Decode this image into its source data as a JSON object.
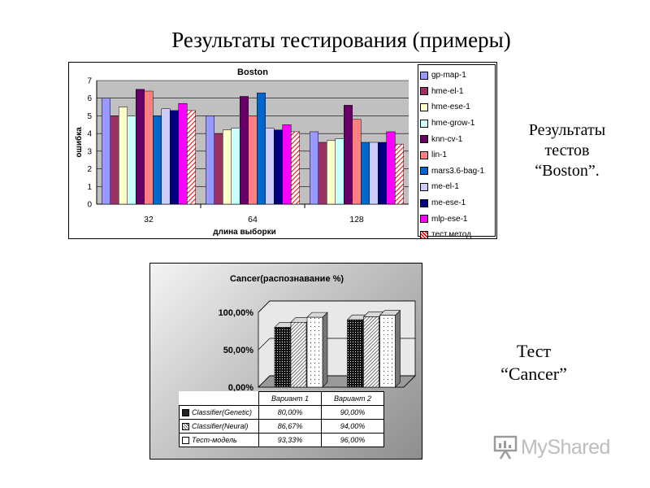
{
  "slide": {
    "title": "Результаты тестирования (примеры)",
    "boston_caption": [
      "Результаты",
      "тестов",
      "“Boston”."
    ],
    "cancer_caption": [
      "Тест",
      "“Cancer”"
    ],
    "watermark": "MyShared"
  },
  "chart_data": [
    {
      "type": "bar",
      "title": "Boston",
      "xlabel": "длина выборки",
      "ylabel": "ошибка",
      "categories": [
        "32",
        "64",
        "128"
      ],
      "ylim": [
        0,
        7
      ],
      "yticks": [
        0,
        1,
        2,
        3,
        4,
        5,
        6,
        7
      ],
      "grid": true,
      "legend": "right",
      "series": [
        {
          "name": "gp-map-1",
          "color": "#9999ff",
          "values": [
            6.0,
            5.0,
            4.1
          ]
        },
        {
          "name": "hme-el-1",
          "color": "#993366",
          "values": [
            5.0,
            4.0,
            3.5
          ]
        },
        {
          "name": "hme-ese-1",
          "color": "#ffffcc",
          "values": [
            5.5,
            4.2,
            3.6
          ]
        },
        {
          "name": "hme-grow-1",
          "color": "#ccffff",
          "values": [
            5.0,
            4.3,
            3.7
          ]
        },
        {
          "name": "knn-cv-1",
          "color": "#660066",
          "values": [
            6.5,
            6.1,
            5.6
          ]
        },
        {
          "name": "lin-1",
          "color": "#ff8080",
          "values": [
            6.4,
            5.0,
            4.8
          ]
        },
        {
          "name": "mars3.6-bag-1",
          "color": "#0066cc",
          "values": [
            5.0,
            6.3,
            3.5
          ]
        },
        {
          "name": "me-el-1",
          "color": "#ccccff",
          "values": [
            5.4,
            4.3,
            3.5
          ]
        },
        {
          "name": "me-ese-1",
          "color": "#000080",
          "values": [
            5.3,
            4.2,
            3.5
          ]
        },
        {
          "name": "mlp-ese-1",
          "color": "#ff00ff",
          "values": [
            5.7,
            4.5,
            4.1
          ]
        },
        {
          "name": "тест.метод",
          "color": "#ff0000",
          "pattern": "hatch",
          "values": [
            5.3,
            4.1,
            3.4
          ]
        }
      ]
    },
    {
      "type": "bar",
      "title": "Cancer(распознавание %)",
      "categories": [
        "Вариант 1",
        "Вариант 2"
      ],
      "ylim": [
        0,
        100
      ],
      "ytick_labels": [
        "0,00%",
        "50,00%",
        "100,00%"
      ],
      "legend": "table",
      "series": [
        {
          "name": "Classifier(Genetic)",
          "pattern": "dots-dense",
          "values": [
            80.0,
            90.0
          ],
          "labels": [
            "80,00%",
            "90,00%"
          ]
        },
        {
          "name": "Classifier(Neural)",
          "pattern": "diagonal",
          "values": [
            86.67,
            94.0
          ],
          "labels": [
            "86,67%",
            "94,00%"
          ]
        },
        {
          "name": "Тест-модель",
          "pattern": "dots-sparse",
          "values": [
            93.33,
            96.0
          ],
          "labels": [
            "93,33%",
            "96,00%"
          ]
        }
      ]
    }
  ]
}
